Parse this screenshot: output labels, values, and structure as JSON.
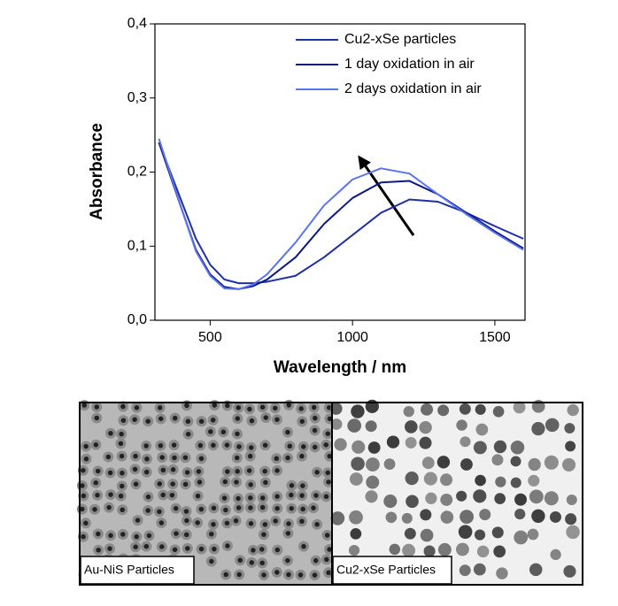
{
  "chart_data": {
    "type": "line",
    "x_label": "Wavelength / nm",
    "y_label": "Absorbance",
    "x": [
      320,
      400,
      450,
      500,
      550,
      600,
      650,
      700,
      800,
      900,
      1000,
      1100,
      1200,
      1300,
      1400,
      1500,
      1600
    ],
    "series": [
      {
        "name": "Cu2-xSe particles",
        "color": "#1f2fa8",
        "values": [
          0.24,
          0.16,
          0.11,
          0.075,
          0.055,
          0.05,
          0.05,
          0.052,
          0.06,
          0.085,
          0.115,
          0.145,
          0.163,
          0.16,
          0.145,
          0.127,
          0.11
        ]
      },
      {
        "name": "1 day oxidation in air",
        "color": "#0c1a82",
        "values": [
          0.24,
          0.15,
          0.095,
          0.062,
          0.045,
          0.042,
          0.046,
          0.055,
          0.085,
          0.13,
          0.165,
          0.186,
          0.188,
          0.17,
          0.145,
          0.12,
          0.097
        ]
      },
      {
        "name": "2 days oxidation in air",
        "color": "#5b73f0",
        "values": [
          0.245,
          0.15,
          0.093,
          0.06,
          0.043,
          0.042,
          0.048,
          0.062,
          0.105,
          0.155,
          0.19,
          0.205,
          0.198,
          0.17,
          0.143,
          0.118,
          0.095
        ]
      }
    ],
    "xlim": [
      306,
      1606
    ],
    "ylim": [
      0,
      0.4
    ],
    "xticks": [
      500,
      1000,
      1500
    ],
    "yticks": [
      {
        "value": 0,
        "label": "0,0"
      },
      {
        "value": 0.1,
        "label": "0,1"
      },
      {
        "value": 0.2,
        "label": "0,2"
      },
      {
        "value": 0.3,
        "label": "0,3"
      },
      {
        "value": 0.4,
        "label": "0,4"
      }
    ],
    "legend": "upper right"
  },
  "panels": [
    {
      "label": "Au-NiS Particles"
    },
    {
      "label": "Cu2-xSe Particles"
    }
  ]
}
